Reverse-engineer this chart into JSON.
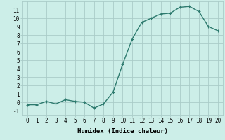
{
  "x": [
    0,
    1,
    2,
    3,
    4,
    5,
    6,
    7,
    8,
    9,
    10,
    11,
    12,
    13,
    14,
    15,
    16,
    17,
    18,
    19,
    20
  ],
  "y": [
    -0.3,
    -0.3,
    0.1,
    -0.2,
    0.3,
    0.1,
    0.0,
    -0.7,
    -0.2,
    1.2,
    4.5,
    7.5,
    9.5,
    10.0,
    10.5,
    10.6,
    11.3,
    11.4,
    10.8,
    9.0,
    8.5
  ],
  "line_color": "#2d7a6e",
  "marker_color": "#2d7a6e",
  "bg_color": "#cceee8",
  "grid_color": "#aaccc8",
  "xlabel": "Humidex (Indice chaleur)",
  "xlim": [
    -0.5,
    20.5
  ],
  "ylim": [
    -1.5,
    12.0
  ],
  "xticks": [
    0,
    1,
    2,
    3,
    4,
    5,
    6,
    7,
    8,
    9,
    10,
    11,
    12,
    13,
    14,
    15,
    16,
    17,
    18,
    19,
    20
  ],
  "yticks": [
    -1,
    0,
    1,
    2,
    3,
    4,
    5,
    6,
    7,
    8,
    9,
    10,
    11
  ],
  "tick_label_fontsize": 5.5,
  "xlabel_fontsize": 6.5,
  "marker_size": 2.5,
  "line_width": 1.0
}
